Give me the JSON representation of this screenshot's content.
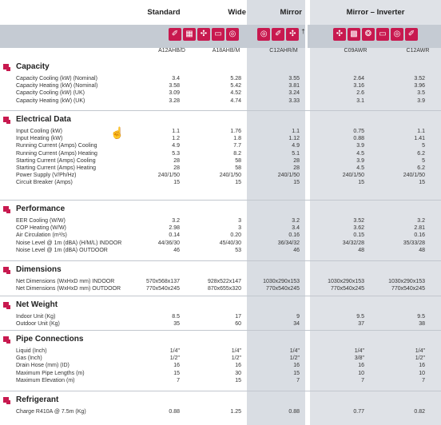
{
  "columns": [
    {
      "header": "Standard",
      "model": "A12AHB/D",
      "icons": [
        "swing-icon",
        "dual-filter-icon",
        "four-way-icon",
        "filter-icon",
        "auto-clean-icon"
      ]
    },
    {
      "header": "Wide",
      "model": "A18AHB/M",
      "icons": []
    },
    {
      "header": "Mirror",
      "model": "C12AHR/M",
      "icons": [
        "auto-clean-icon",
        "swing-icon",
        "four-way-icon"
      ],
      "note": "†"
    },
    {
      "header": "Mirror – Inverter",
      "model": "C09AWR",
      "icons": [
        "four-way-icon",
        "grid-icon",
        "circle-icon",
        "filter-icon",
        "auto-clean-icon",
        "swing-icon"
      ]
    },
    {
      "header": "",
      "model": "C12AWR",
      "icons": []
    }
  ],
  "sections": [
    {
      "title": "Capacity",
      "rows": [
        {
          "label": "Capacity Cooling (kW) (Nominal)",
          "values": [
            "3.4",
            "5.28",
            "3.55",
            "2.64",
            "3.52"
          ]
        },
        {
          "label": "Capacity Heating (kW) (Nominal)",
          "values": [
            "3.58",
            "5.42",
            "3.81",
            "3.16",
            "3.96"
          ]
        },
        {
          "label": "Capacity Cooling (kW) (UK)",
          "values": [
            "3.09",
            "4.52",
            "3.24",
            "2.6",
            "3.5"
          ]
        },
        {
          "label": "Capacity Heating (kW) (UK)",
          "values": [
            "3.28",
            "4.74",
            "3.33",
            "3.1",
            "3.9"
          ]
        }
      ]
    },
    {
      "title": "Electrical Data",
      "rows": [
        {
          "label": "Input Cooling (kW)",
          "values": [
            "1.1",
            "1.76",
            "1.1",
            "0.75",
            "1.1"
          ]
        },
        {
          "label": "Input Heating (kW)",
          "values": [
            "1.2",
            "1.8",
            "1.12",
            "0.88",
            "1.41"
          ]
        },
        {
          "label": "Running Current (Amps) Cooling",
          "values": [
            "4.9",
            "7.7",
            "4.9",
            "3.9",
            "5"
          ]
        },
        {
          "label": "Running Current (Amps) Heating",
          "values": [
            "5.3",
            "8.2",
            "5.1",
            "4.5",
            "6.2"
          ]
        },
        {
          "label": "Starting Current (Amps) Cooling",
          "values": [
            "28",
            "58",
            "28",
            "3.9",
            "5"
          ]
        },
        {
          "label": "Starting Current (Amps) Heating",
          "values": [
            "28",
            "58",
            "28",
            "4.5",
            "6.2"
          ]
        },
        {
          "label": "Power Supply (V/Ph/Hz)",
          "values": [
            "240/1/50",
            "240/1/50",
            "240/1/50",
            "240/1/50",
            "240/1/50"
          ]
        },
        {
          "label": "Circuit Breaker (Amps)",
          "values": [
            "15",
            "15",
            "15",
            "15",
            "15"
          ]
        }
      ]
    },
    {
      "title": "Performance",
      "rows": [
        {
          "label": "EER Cooling (W/W)",
          "values": [
            "3.2",
            "3",
            "3.2",
            "3.52",
            "3.2"
          ]
        },
        {
          "label": "COP Heating (W/W)",
          "values": [
            "2.98",
            "3",
            "3.4",
            "3.62",
            "2.81"
          ]
        },
        {
          "label": "Air Circulation (m³/s)",
          "values": [
            "0.14",
            "0.20",
            "0.16",
            "0.15",
            "0.16"
          ]
        },
        {
          "label": "Noise Level @ 1m (dBA) (H/M/L) INDOOR",
          "values": [
            "44/36/30",
            "45/40/30",
            "36/34/32",
            "34/32/28",
            "35/33/28"
          ]
        },
        {
          "label": "Noise Level @ 1m (dBA) OUTDOOR",
          "values": [
            "46",
            "53",
            "46",
            "48",
            "48"
          ]
        }
      ]
    },
    {
      "title": "Dimensions",
      "rows": [
        {
          "label": "Net Dimensions (WxHxD mm) INDOOR",
          "values": [
            "570x568x137",
            "928x522x147",
            "1030x290x153",
            "1030x290x153",
            "1030x290x153"
          ]
        },
        {
          "label": "Net Dimensions (WxHxD mm) OUTDOOR",
          "values": [
            "770x540x245",
            "870x655x320",
            "770x540x245",
            "770x540x245",
            "770x540x245"
          ]
        }
      ]
    },
    {
      "title": "Net Weight",
      "rows": [
        {
          "label": "Indoor Unit (Kg)",
          "values": [
            "8.5",
            "17",
            "9",
            "9.5",
            "9.5"
          ]
        },
        {
          "label": "Outdoor Unit (Kg)",
          "values": [
            "35",
            "60",
            "34",
            "37",
            "38"
          ]
        }
      ]
    },
    {
      "title": "Pipe Connections",
      "rows": [
        {
          "label": "Liquid (Inch)",
          "values": [
            "1/4\"",
            "1/4\"",
            "1/4\"",
            "1/4\"",
            "1/4\""
          ]
        },
        {
          "label": "Gas (Inch)",
          "values": [
            "1/2\"",
            "1/2\"",
            "1/2\"",
            "3/8\"",
            "1/2\""
          ]
        },
        {
          "label": "Drain Hose (mm) (ID)",
          "values": [
            "16",
            "16",
            "16",
            "16",
            "16"
          ]
        },
        {
          "label": "Maximum Pipe Lengths (m)",
          "values": [
            "15",
            "30",
            "15",
            "10",
            "10"
          ]
        },
        {
          "label": "Maximum Elevation (m)",
          "values": [
            "7",
            "15",
            "7",
            "7",
            "7"
          ]
        }
      ]
    },
    {
      "title": "Refrigerant",
      "rows": [
        {
          "label": "Charge R410A @ 7.5m (Kg)",
          "values": [
            "0.88",
            "1.25",
            "0.88",
            "0.77",
            "0.82"
          ]
        }
      ]
    }
  ]
}
